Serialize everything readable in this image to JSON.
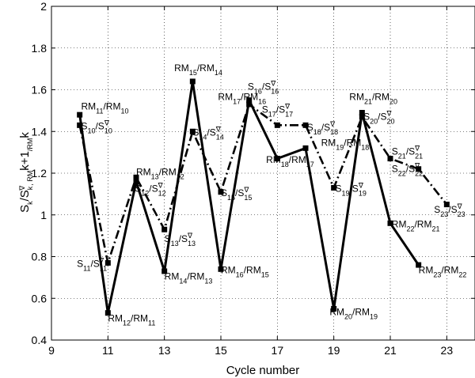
{
  "chart_data": {
    "type": "line",
    "title": "",
    "xlabel": "Cycle number",
    "ylabel_parts": [
      "S",
      "k",
      "/S",
      "k",
      "∇",
      ", RM",
      "k+1",
      "/RM",
      "k"
    ],
    "xlim": [
      9,
      24
    ],
    "ylim": [
      0.4,
      2
    ],
    "xticks": [
      9,
      11,
      13,
      15,
      17,
      19,
      21,
      23
    ],
    "yticks": [
      0.4,
      0.6,
      0.8,
      1,
      1.2,
      1.4,
      1.6,
      1.8,
      2
    ],
    "grid": true,
    "legend": "none",
    "series": [
      {
        "style": "solid",
        "x": [
          10,
          11,
          12,
          13,
          14,
          15,
          16,
          17,
          18,
          19,
          20,
          21,
          22
        ],
        "y": [
          1.48,
          0.53,
          1.16,
          0.73,
          1.64,
          0.74,
          1.55,
          1.27,
          1.32,
          0.55,
          1.49,
          0.96,
          0.76
        ]
      },
      {
        "style": "dashdot",
        "x": [
          10,
          11,
          12,
          13,
          14,
          15,
          16,
          17,
          18,
          19,
          20,
          21,
          22,
          23
        ],
        "y": [
          1.43,
          0.77,
          1.18,
          0.93,
          1.4,
          1.11,
          1.53,
          1.43,
          1.43,
          1.13,
          1.47,
          1.27,
          1.22,
          1.05
        ]
      }
    ],
    "annotations": [
      {
        "x": 10.05,
        "y": 1.505,
        "parts": [
          "RM",
          "11",
          "/RM",
          "10"
        ]
      },
      {
        "x": 10.05,
        "y": 1.41,
        "parts": [
          "S",
          "10",
          "/S",
          "10",
          "∇"
        ]
      },
      {
        "x": 9.9,
        "y": 0.75,
        "parts": [
          "S",
          "11",
          "/S",
          "11",
          "∇"
        ]
      },
      {
        "x": 11.0,
        "y": 0.49,
        "parts": [
          "RM",
          "12",
          "/RM",
          "11"
        ]
      },
      {
        "x": 12.0,
        "y": 1.19,
        "parts": [
          "RM",
          "13",
          "/RM",
          "12"
        ]
      },
      {
        "x": 11.95,
        "y": 1.11,
        "parts": [
          "S",
          "12",
          "/S",
          "12",
          "∇"
        ]
      },
      {
        "x": 13.0,
        "y": 0.87,
        "parts": [
          "S",
          "13",
          "/S",
          "13",
          "∇"
        ]
      },
      {
        "x": 13.0,
        "y": 0.69,
        "parts": [
          "RM",
          "14",
          "/RM",
          "13"
        ]
      },
      {
        "x": 13.35,
        "y": 1.69,
        "parts": [
          "RM",
          "15",
          "/RM",
          "14"
        ]
      },
      {
        "x": 14.0,
        "y": 1.38,
        "parts": [
          "S",
          "14",
          "/S",
          "14",
          "∇"
        ]
      },
      {
        "x": 15.0,
        "y": 1.09,
        "parts": [
          "S",
          "15",
          "/S",
          "15",
          "∇"
        ]
      },
      {
        "x": 15.0,
        "y": 0.72,
        "parts": [
          "RM",
          "16",
          "/RM",
          "15"
        ]
      },
      {
        "x": 14.9,
        "y": 1.55,
        "parts": [
          "RM",
          "17",
          "/RM",
          "16"
        ]
      },
      {
        "x": 15.95,
        "y": 1.6,
        "parts": [
          "S",
          "16",
          "/S",
          "16",
          "∇"
        ]
      },
      {
        "x": 16.45,
        "y": 1.49,
        "parts": [
          "S",
          "17",
          "/S",
          "17",
          "∇"
        ]
      },
      {
        "x": 16.6,
        "y": 1.25,
        "parts": [
          "RM",
          "18",
          "/RM",
          "17"
        ]
      },
      {
        "x": 18.05,
        "y": 1.405,
        "parts": [
          "S",
          "18",
          "/S",
          "18",
          "∇"
        ]
      },
      {
        "x": 18.55,
        "y": 1.33,
        "parts": [
          "RM",
          "19",
          "/RM",
          "18"
        ]
      },
      {
        "x": 19.05,
        "y": 1.11,
        "parts": [
          "S",
          "19",
          "/S",
          "19",
          "∇"
        ]
      },
      {
        "x": 18.85,
        "y": 0.52,
        "parts": [
          "RM",
          "20",
          "/RM",
          "19"
        ]
      },
      {
        "x": 19.55,
        "y": 1.55,
        "parts": [
          "RM",
          "21",
          "/RM",
          "20"
        ]
      },
      {
        "x": 20.05,
        "y": 1.455,
        "parts": [
          "S",
          "20",
          "/S",
          "20",
          "∇"
        ]
      },
      {
        "x": 21.05,
        "y": 1.29,
        "parts": [
          "S",
          "21",
          "/S",
          "21",
          "∇"
        ]
      },
      {
        "x": 21.05,
        "y": 1.205,
        "parts": [
          "S",
          "22",
          "/S",
          "22",
          "∇"
        ]
      },
      {
        "x": 21.05,
        "y": 0.94,
        "parts": [
          "RM",
          "22",
          "/RM",
          "21"
        ]
      },
      {
        "x": 22.55,
        "y": 1.01,
        "parts": [
          "S",
          "23",
          "/S",
          "23",
          "∇"
        ]
      },
      {
        "x": 22.0,
        "y": 0.72,
        "parts": [
          "RM",
          "23",
          "/RM",
          "22"
        ]
      }
    ]
  }
}
